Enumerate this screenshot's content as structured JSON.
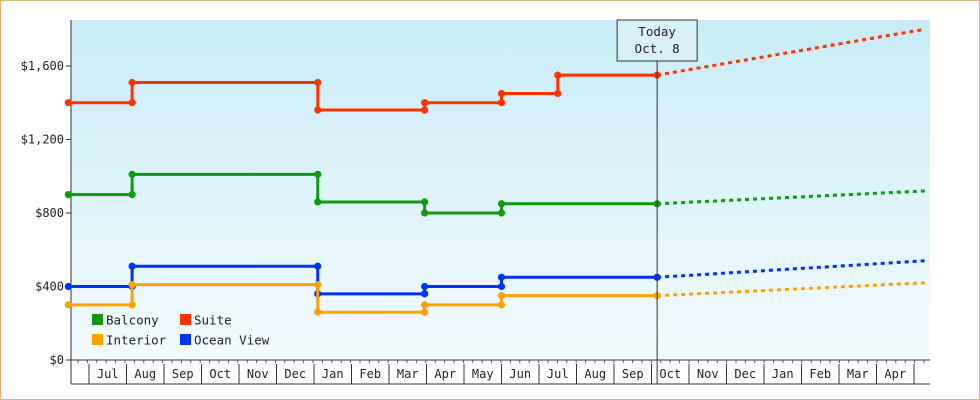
{
  "chart_data": {
    "type": "line",
    "title": "",
    "xlabel": "",
    "ylabel": "",
    "ylim": [
      0,
      1850
    ],
    "grid": false,
    "legend_position": "bottom-left",
    "y_ticks": [
      {
        "value": 0,
        "label": "$0"
      },
      {
        "value": 400,
        "label": "$400"
      },
      {
        "value": 800,
        "label": "$800"
      },
      {
        "value": 1200,
        "label": "$1,200"
      },
      {
        "value": 1600,
        "label": "$1,600"
      }
    ],
    "months": [
      "Jul",
      "Aug",
      "Sep",
      "Oct",
      "Nov",
      "Dec",
      "Jan",
      "Feb",
      "Mar",
      "Apr",
      "May",
      "Jun",
      "Jul",
      "Aug",
      "Sep",
      "Oct",
      "Nov",
      "Dec",
      "Jan",
      "Feb",
      "Mar",
      "Apr"
    ],
    "today": {
      "line1": "Today",
      "line2": "Oct. 8",
      "x": 15.15
    },
    "forecast_end_x": 22.3,
    "series": [
      {
        "name": "Suite",
        "color": "#ff3300",
        "points": [
          [
            -0.55,
            1400
          ],
          [
            1.15,
            1400
          ],
          [
            1.15,
            1510
          ],
          [
            6.1,
            1510
          ],
          [
            6.1,
            1360
          ],
          [
            8.95,
            1360
          ],
          [
            8.95,
            1400
          ],
          [
            11.0,
            1400
          ],
          [
            11.0,
            1450
          ],
          [
            12.5,
            1450
          ],
          [
            12.5,
            1550
          ],
          [
            15.15,
            1550
          ]
        ],
        "forecast": [
          [
            15.15,
            1550
          ],
          [
            22.3,
            1800
          ]
        ]
      },
      {
        "name": "Balcony",
        "color": "#119911",
        "points": [
          [
            -0.55,
            900
          ],
          [
            1.15,
            900
          ],
          [
            1.15,
            1010
          ],
          [
            6.1,
            1010
          ],
          [
            6.1,
            860
          ],
          [
            8.95,
            860
          ],
          [
            8.95,
            800
          ],
          [
            11.0,
            800
          ],
          [
            11.0,
            850
          ],
          [
            15.15,
            850
          ]
        ],
        "forecast": [
          [
            15.15,
            850
          ],
          [
            22.3,
            920
          ]
        ]
      },
      {
        "name": "Ocean View",
        "color": "#0033ee",
        "points": [
          [
            -0.55,
            400
          ],
          [
            1.15,
            400
          ],
          [
            1.15,
            510
          ],
          [
            6.1,
            510
          ],
          [
            6.1,
            360
          ],
          [
            8.95,
            360
          ],
          [
            8.95,
            400
          ],
          [
            11.0,
            400
          ],
          [
            11.0,
            450
          ],
          [
            15.15,
            450
          ]
        ],
        "forecast": [
          [
            15.15,
            450
          ],
          [
            22.3,
            540
          ]
        ]
      },
      {
        "name": "Interior",
        "color": "#ffa100",
        "points": [
          [
            -0.55,
            300
          ],
          [
            1.15,
            300
          ],
          [
            1.15,
            410
          ],
          [
            6.1,
            410
          ],
          [
            6.1,
            260
          ],
          [
            8.95,
            260
          ],
          [
            8.95,
            300
          ],
          [
            11.0,
            300
          ],
          [
            11.0,
            350
          ],
          [
            15.15,
            350
          ]
        ],
        "forecast": [
          [
            15.15,
            350
          ],
          [
            22.3,
            420
          ]
        ]
      }
    ],
    "legend": [
      {
        "name": "Balcony",
        "color": "#119911"
      },
      {
        "name": "Suite",
        "color": "#ff3300"
      },
      {
        "name": "Interior",
        "color": "#ffa100"
      },
      {
        "name": "Ocean View",
        "color": "#0033ee"
      }
    ]
  }
}
